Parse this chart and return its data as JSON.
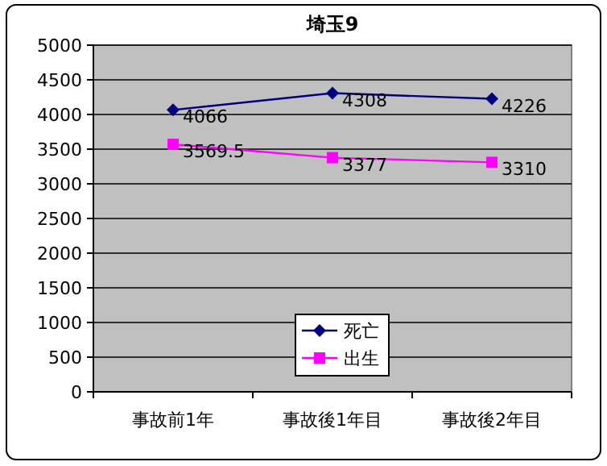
{
  "chart_data": {
    "type": "line",
    "title": "埼玉9",
    "categories": [
      "事故前1年",
      "事故後1年目",
      "事故後2年目"
    ],
    "series": [
      {
        "name": "死亡",
        "color": "#000080",
        "marker": "diamond",
        "values": [
          4066,
          4308,
          4226
        ]
      },
      {
        "name": "出生",
        "color": "#ff00ff",
        "marker": "square",
        "values": [
          3569.5,
          3377,
          3310
        ]
      }
    ],
    "ylim": [
      0,
      5000
    ],
    "yticks": [
      0,
      500,
      1000,
      1500,
      2000,
      2500,
      3000,
      3500,
      4000,
      4500,
      5000
    ],
    "grid": "y",
    "legend": "bottom",
    "data_labels": true
  }
}
